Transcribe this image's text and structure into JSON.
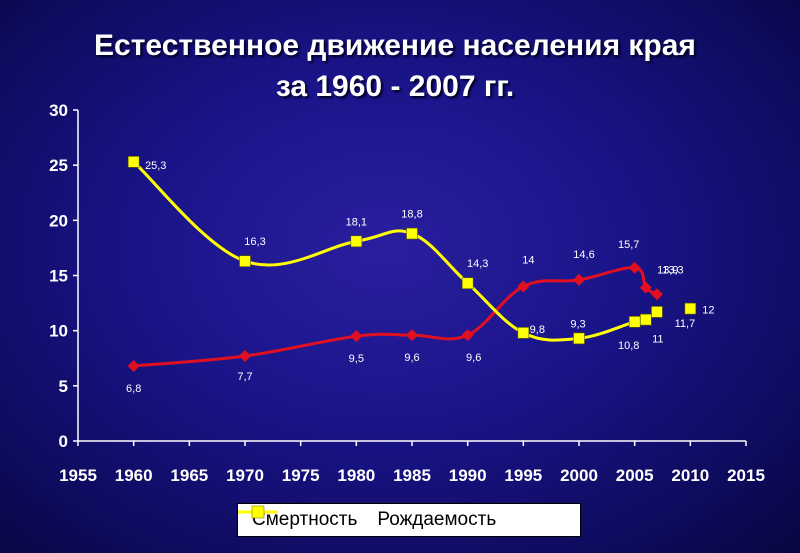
{
  "title_line1": "Естественное движение населения края",
  "title_line2": "за 1960 - 2007 гг.",
  "colors": {
    "mortality": "#e01020",
    "births": "#ffff00",
    "axis": "#ffffff"
  },
  "chart_data": {
    "type": "line",
    "xlim": [
      1955,
      2015
    ],
    "ylim": [
      0,
      30
    ],
    "x_ticks": [
      1955,
      1960,
      1965,
      1970,
      1975,
      1980,
      1985,
      1990,
      1995,
      2000,
      2005,
      2010,
      2015
    ],
    "y_ticks": [
      0,
      5,
      10,
      15,
      20,
      25,
      30
    ],
    "legend_position": "bottom",
    "series": [
      {
        "name": "Смертность",
        "color": "#e01020",
        "marker": "diamond",
        "points": [
          {
            "x": 1960,
            "y": 6.8,
            "label": "6,8"
          },
          {
            "x": 1970,
            "y": 7.7,
            "label": "7,7"
          },
          {
            "x": 1980,
            "y": 9.5,
            "label": "9,5"
          },
          {
            "x": 1985,
            "y": 9.6,
            "label": "9,6"
          },
          {
            "x": 1990,
            "y": 9.6,
            "label": "9,6"
          },
          {
            "x": 1995,
            "y": 14.0,
            "label": "14"
          },
          {
            "x": 2000,
            "y": 14.6,
            "label": "14,6"
          },
          {
            "x": 2005,
            "y": 15.7,
            "label": "15,7"
          },
          {
            "x": 2006,
            "y": 13.9,
            "label": "13,9"
          },
          {
            "x": 2007,
            "y": 13.3,
            "label": "13,3"
          }
        ]
      },
      {
        "name": "Рождаемость",
        "color": "#ffff00",
        "marker": "square",
        "points": [
          {
            "x": 1960,
            "y": 25.3,
            "label": "25,3"
          },
          {
            "x": 1970,
            "y": 16.3,
            "label": "16,3"
          },
          {
            "x": 1980,
            "y": 18.1,
            "label": "18,1"
          },
          {
            "x": 1985,
            "y": 18.8,
            "label": "18,8"
          },
          {
            "x": 1990,
            "y": 14.3,
            "label": "14,3"
          },
          {
            "x": 1995,
            "y": 9.8,
            "label": "9,8"
          },
          {
            "x": 2000,
            "y": 9.3,
            "label": "9,3"
          },
          {
            "x": 2005,
            "y": 10.8,
            "label": "10,8"
          },
          {
            "x": 2006,
            "y": 11.0,
            "label": "11"
          },
          {
            "x": 2007,
            "y": 11.7,
            "label": "11,7"
          }
        ]
      },
      {
        "name": "",
        "color": "#ffff00",
        "marker": "square",
        "points": [
          {
            "x": 2010,
            "y": 12.0,
            "label": "12"
          }
        ]
      }
    ]
  }
}
